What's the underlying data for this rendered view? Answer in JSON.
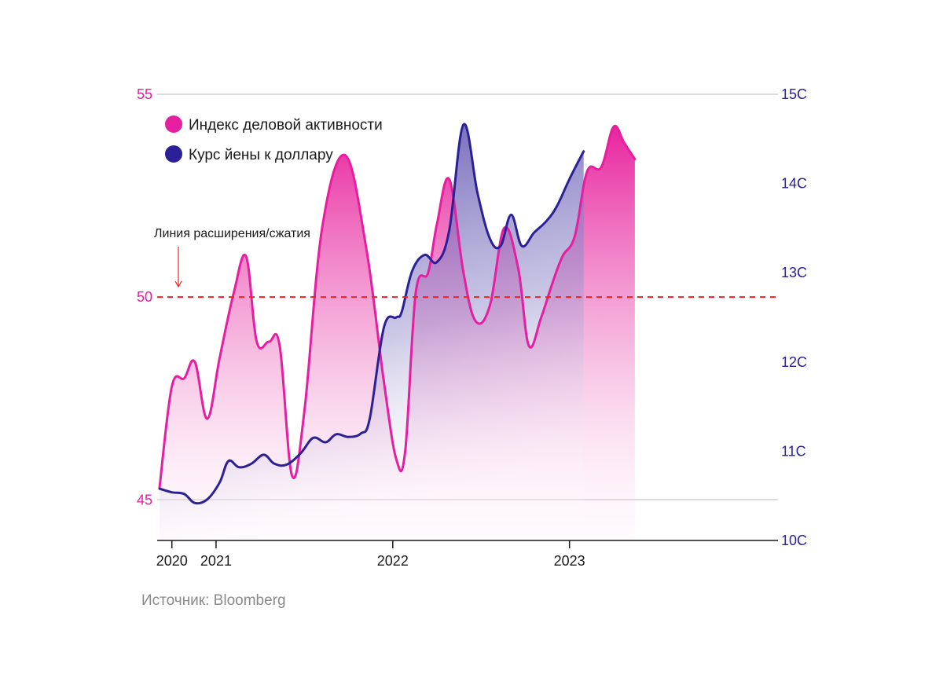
{
  "chart_data": {
    "type": "area",
    "title": "",
    "legend": [
      {
        "label": "Индекс деловой активности",
        "color": "#e61ea0"
      },
      {
        "label": "Курс йены к доллару",
        "color": "#2c2096"
      }
    ],
    "annotation": "Линия расширения/сжатия",
    "reference_line": {
      "value": 50,
      "axis": "left",
      "color": "#ee2222"
    },
    "left_axis": {
      "range": [
        44,
        55
      ],
      "ticks": [
        "45",
        "50",
        "55"
      ],
      "color": "#e61ea0"
    },
    "right_axis": {
      "range": [
        100,
        150
      ],
      "ticks": [
        "10C",
        "11C",
        "12C",
        "13C",
        "14C",
        "15C"
      ],
      "color": "#2c2096"
    },
    "x_axis": {
      "range": [
        2019.93,
        2023.43
      ],
      "ticks": [
        {
          "label": "2020",
          "x": 2020.0
        },
        {
          "label": "2021",
          "x": 2020.25
        },
        {
          "label": "2022",
          "x": 2021.25
        },
        {
          "label": "2023",
          "x": 2022.25
        }
      ]
    },
    "series": [
      {
        "name": "Индекс деловой активности",
        "axis": "left",
        "color": "#e61ea0",
        "points": [
          [
            2019.93,
            45.3
          ],
          [
            2020.0,
            47.8
          ],
          [
            2020.07,
            48.0
          ],
          [
            2020.13,
            48.4
          ],
          [
            2020.2,
            47.0
          ],
          [
            2020.27,
            48.5
          ],
          [
            2020.35,
            50.1
          ],
          [
            2020.42,
            51.0
          ],
          [
            2020.48,
            48.9
          ],
          [
            2020.55,
            48.9
          ],
          [
            2020.61,
            48.8
          ],
          [
            2020.68,
            45.6
          ],
          [
            2020.75,
            47.2
          ],
          [
            2020.85,
            51.7
          ],
          [
            2020.98,
            53.5
          ],
          [
            2021.1,
            51.2
          ],
          [
            2021.2,
            47.9
          ],
          [
            2021.27,
            46.0
          ],
          [
            2021.32,
            46.2
          ],
          [
            2021.38,
            50.1
          ],
          [
            2021.45,
            50.6
          ],
          [
            2021.5,
            51.8
          ],
          [
            2021.57,
            52.9
          ],
          [
            2021.65,
            50.6
          ],
          [
            2021.72,
            49.4
          ],
          [
            2021.8,
            49.8
          ],
          [
            2021.88,
            51.7
          ],
          [
            2021.96,
            50.7
          ],
          [
            2022.02,
            48.8
          ],
          [
            2022.09,
            49.5
          ],
          [
            2022.15,
            50.3
          ],
          [
            2022.21,
            51.0
          ],
          [
            2022.28,
            51.5
          ],
          [
            2022.35,
            53.1
          ],
          [
            2022.43,
            53.2
          ],
          [
            2022.5,
            54.2
          ],
          [
            2022.56,
            53.8
          ],
          [
            2022.62,
            53.4
          ]
        ]
      },
      {
        "name": "Курс йены к доллару",
        "axis": "right",
        "color": "#2c2096",
        "points": [
          [
            2019.93,
            105.8
          ],
          [
            2020.0,
            105.4
          ],
          [
            2020.07,
            105.2
          ],
          [
            2020.13,
            104.2
          ],
          [
            2020.2,
            104.6
          ],
          [
            2020.27,
            106.5
          ],
          [
            2020.32,
            108.9
          ],
          [
            2020.38,
            108.2
          ],
          [
            2020.45,
            108.6
          ],
          [
            2020.52,
            109.6
          ],
          [
            2020.58,
            108.6
          ],
          [
            2020.65,
            108.5
          ],
          [
            2020.73,
            109.8
          ],
          [
            2020.8,
            111.5
          ],
          [
            2020.87,
            111.0
          ],
          [
            2020.93,
            111.9
          ],
          [
            2021.0,
            111.6
          ],
          [
            2021.07,
            112.0
          ],
          [
            2021.12,
            113.7
          ],
          [
            2021.2,
            123.9
          ],
          [
            2021.27,
            125.0
          ],
          [
            2021.3,
            125.6
          ],
          [
            2021.36,
            130.2
          ],
          [
            2021.43,
            132.0
          ],
          [
            2021.5,
            131.2
          ],
          [
            2021.57,
            134.8
          ],
          [
            2021.65,
            146.6
          ],
          [
            2021.73,
            138.9
          ],
          [
            2021.8,
            133.8
          ],
          [
            2021.86,
            133.0
          ],
          [
            2021.92,
            136.5
          ],
          [
            2021.98,
            133.0
          ],
          [
            2022.05,
            134.5
          ],
          [
            2022.12,
            135.8
          ],
          [
            2022.18,
            137.5
          ],
          [
            2022.25,
            140.5
          ],
          [
            2022.33,
            143.6
          ]
        ]
      }
    ]
  },
  "source": "Источник: Bloomberg"
}
